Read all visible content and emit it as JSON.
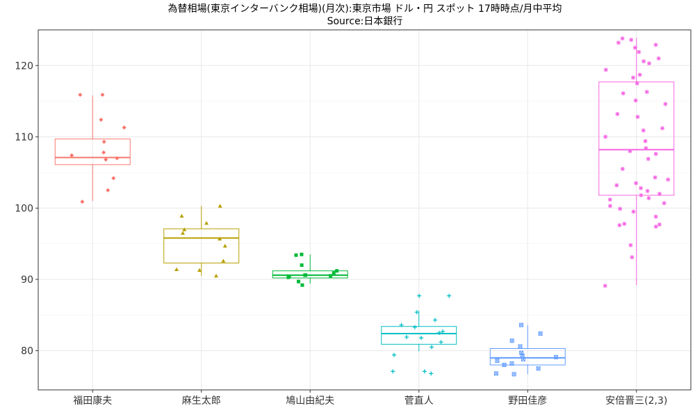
{
  "chart_data": {
    "type": "box",
    "title": "為替相場(東京インターバンク相場)(月次):東京市場 ドル・円 スポット 17時時点/月中平均",
    "subtitle": "Source:日本銀行",
    "xlabel": "",
    "ylabel": "",
    "ylim": [
      74.5,
      125
    ],
    "yticks": [
      80,
      90,
      100,
      110,
      120
    ],
    "grid": true,
    "legend": "none",
    "categories": [
      "福田康夫",
      "麻生太郎",
      "鳩山由紀夫",
      "菅直人",
      "野田佳彦",
      "安倍晋三(2,3)"
    ],
    "series": [
      {
        "color": "#F8766D",
        "marker": "diamond",
        "box": {
          "min": 101,
          "q1": 106.1,
          "median": 107.1,
          "q3": 109.7,
          "max": 115.8
        },
        "points": [
          115.9,
          115.9,
          112.4,
          111.3,
          109.3,
          107.8,
          107.4,
          107.0,
          106.8,
          104.2,
          102.5,
          100.9
        ]
      },
      {
        "color": "#B79F00",
        "marker": "triangle",
        "box": {
          "min": 90.5,
          "q1": 92.3,
          "median": 95.8,
          "q3": 97.1,
          "max": 100.3
        },
        "points": [
          100.3,
          98.9,
          97.9,
          97.0,
          96.5,
          95.7,
          94.7,
          92.6,
          91.4,
          91.3,
          90.5
        ]
      },
      {
        "color": "#00BA38",
        "marker": "square",
        "box": {
          "min": 89.4,
          "q1": 90.2,
          "median": 90.6,
          "q3": 91.2,
          "max": 93.5
        },
        "points": [
          93.5,
          93.4,
          92.0,
          91.2,
          90.9,
          90.6,
          90.6,
          90.5,
          90.4,
          90.3,
          89.7,
          89.2
        ]
      },
      {
        "color": "#00BFC4",
        "marker": "plus",
        "box": {
          "min": 79.9,
          "q1": 80.9,
          "median": 82.4,
          "q3": 83.4,
          "max": 85.6
        },
        "points": [
          87.7,
          87.7,
          85.4,
          84.3,
          83.6,
          83.3,
          82.7,
          82.5,
          81.9,
          81.8,
          81.2,
          80.5,
          79.4,
          77.1,
          77.1,
          76.8
        ]
      },
      {
        "color": "#619CFF",
        "marker": "boxcross",
        "box": {
          "min": 76.7,
          "q1": 78.0,
          "median": 79.0,
          "q3": 80.3,
          "max": 83.6
        },
        "points": [
          83.6,
          82.4,
          81.4,
          80.6,
          79.7,
          79.3,
          79.1,
          78.8,
          78.6,
          78.2,
          78.0,
          77.5,
          76.8,
          76.7
        ]
      },
      {
        "color": "#F564E3",
        "marker": "asterisk",
        "box": {
          "min": 89.2,
          "q1": 101.8,
          "median": 108.2,
          "q3": 117.7,
          "max": 123.9
        },
        "points": [
          123.8,
          123.6,
          123.2,
          122.9,
          122.5,
          121.9,
          121.0,
          120.6,
          120.3,
          119.4,
          118.7,
          118.3,
          117.5,
          116.3,
          116.1,
          115.1,
          114.6,
          113.2,
          112.8,
          111.2,
          110.9,
          110.0,
          109.4,
          108.4,
          108.0,
          107.6,
          106.9,
          105.5,
          104.3,
          104.0,
          103.5,
          103.2,
          102.8,
          102.4,
          102.0,
          101.8,
          101.4,
          101.2,
          100.7,
          100.3,
          99.9,
          99.5,
          98.8,
          97.8,
          97.7,
          97.6,
          97.4,
          94.8,
          93.1,
          89.1
        ]
      }
    ]
  }
}
